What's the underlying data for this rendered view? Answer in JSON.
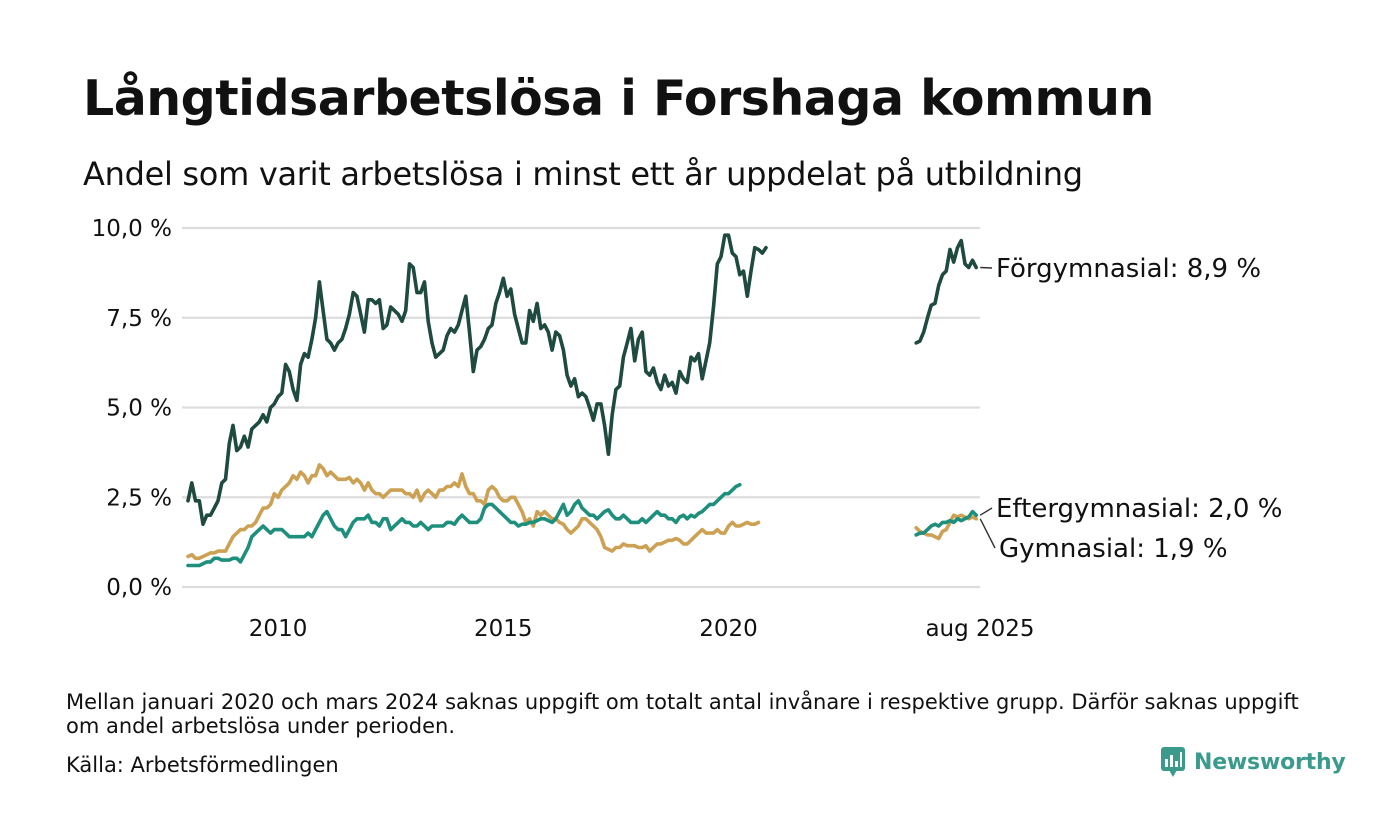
{
  "title": "Långtidsarbetslösa i Forshaga kommun",
  "subtitle": "Andel som varit arbetslösa i minst ett år uppdelat på utbildning",
  "footnote": "Mellan januari 2020 och mars 2024 saknas uppgift om totalt antal invånare i respektive grupp. Därför saknas uppgift om andel arbetslösa under perioden.",
  "source": "Källa: Arbetsförmedlingen",
  "brand": {
    "name": "Newsworthy",
    "icon": "newsworthy-logo-icon",
    "color": "#3a9a8c"
  },
  "chart_data": {
    "type": "line",
    "x_axis": {
      "type": "time",
      "ticks": [
        {
          "date": "2010-01",
          "label": "2010"
        },
        {
          "date": "2015-01",
          "label": "2015"
        },
        {
          "date": "2020-01",
          "label": "2020"
        },
        {
          "date": "2025-08",
          "label": "aug 2025"
        }
      ]
    },
    "y_axis": {
      "range": [
        0,
        10
      ],
      "ticks": [
        {
          "value": 0,
          "label": "0,0 %"
        },
        {
          "value": 2.5,
          "label": "2,5 %"
        },
        {
          "value": 5,
          "label": "5,0 %"
        },
        {
          "value": 7.5,
          "label": "7,5 %"
        },
        {
          "value": 10,
          "label": "10,0 %"
        }
      ],
      "grid": true
    },
    "end_labels": [
      {
        "series": "Förgymnasial",
        "text": "Förgymnasial: 8,9 %"
      },
      {
        "series": "Eftergymnasial",
        "text": "Eftergymnasial: 2,0 %"
      },
      {
        "series": "Gymnasial",
        "text": "Gymnasial: 1,9 %"
      }
    ],
    "series": [
      {
        "name": "Förgymnasial",
        "color": "#1f4a40",
        "segments": [
          {
            "start": "2008-01",
            "values": [
              2.4,
              2.9,
              2.4,
              2.4,
              1.75,
              2.0,
              2.0,
              2.2,
              2.4,
              2.9,
              3.0,
              4.0,
              4.5,
              3.8,
              3.9,
              4.2,
              3.9,
              4.4,
              4.5,
              4.6,
              4.8,
              4.6,
              5.0,
              5.1,
              5.3,
              5.4,
              6.2,
              6.0,
              5.5,
              5.2,
              6.2,
              6.5,
              6.4,
              6.9,
              7.5,
              8.5,
              7.7,
              6.9,
              6.8,
              6.6,
              6.8,
              6.9,
              7.2,
              7.6,
              8.2,
              8.1,
              7.6,
              7.1,
              8.0,
              8.0,
              7.9,
              8.0,
              7.2,
              7.3,
              7.8,
              7.7,
              7.6,
              7.4,
              7.7,
              9.0,
              8.9,
              8.2,
              8.2,
              8.5,
              7.4,
              6.8,
              6.4,
              6.5,
              6.6,
              7.0,
              7.2,
              7.1,
              7.3,
              7.7,
              8.1,
              7.1,
              6.0,
              6.6,
              6.7,
              6.9,
              7.2,
              7.3,
              7.9,
              8.2,
              8.6,
              8.1,
              8.3,
              7.6,
              7.2,
              6.8,
              6.8,
              7.7,
              7.4,
              7.9,
              7.2,
              7.3,
              7.1,
              6.6,
              7.1,
              7.0,
              6.6,
              5.9,
              5.6,
              5.8,
              5.3,
              5.4,
              5.3,
              5.0,
              4.65,
              5.1,
              5.1,
              4.5,
              3.7,
              4.8,
              5.5,
              5.6,
              6.4,
              6.8,
              7.2,
              6.3,
              6.9,
              7.1,
              6.0,
              5.9,
              6.1,
              5.7,
              5.5,
              5.9,
              5.6,
              5.7,
              5.4,
              6.0,
              5.8,
              5.7,
              6.4,
              6.3,
              6.5,
              5.8,
              6.3,
              6.8,
              7.8,
              9.0,
              9.2,
              9.8,
              9.8,
              9.3,
              9.2,
              8.7,
              8.8,
              8.1,
              8.8,
              9.45,
              9.4,
              9.3,
              9.45
            ]
          },
          {
            "start": "2024-03",
            "values": [
              6.8,
              6.85,
              7.1,
              7.5,
              7.85,
              7.9,
              8.4,
              8.7,
              8.8,
              9.4,
              9.05,
              9.45,
              9.65,
              9.0,
              8.9,
              9.1,
              8.9
            ]
          }
        ]
      },
      {
        "name": "Gymnasial",
        "color": "#cca154",
        "segments": [
          {
            "start": "2008-01",
            "values": [
              0.85,
              0.9,
              0.8,
              0.8,
              0.85,
              0.9,
              0.95,
              0.95,
              1.0,
              1.0,
              1.0,
              1.2,
              1.4,
              1.5,
              1.6,
              1.6,
              1.7,
              1.7,
              1.8,
              2.0,
              2.2,
              2.2,
              2.3,
              2.6,
              2.5,
              2.7,
              2.8,
              2.9,
              3.1,
              3.0,
              3.2,
              3.1,
              2.9,
              3.1,
              3.1,
              3.4,
              3.3,
              3.1,
              3.2,
              3.1,
              3.0,
              3.0,
              3.0,
              3.05,
              2.9,
              3.0,
              2.9,
              2.7,
              2.9,
              2.7,
              2.6,
              2.6,
              2.5,
              2.6,
              2.7,
              2.7,
              2.7,
              2.7,
              2.6,
              2.6,
              2.5,
              2.7,
              2.4,
              2.6,
              2.7,
              2.6,
              2.5,
              2.7,
              2.7,
              2.8,
              2.8,
              2.9,
              2.8,
              3.15,
              2.8,
              2.6,
              2.6,
              2.4,
              2.4,
              2.3,
              2.7,
              2.8,
              2.7,
              2.5,
              2.4,
              2.4,
              2.5,
              2.5,
              2.3,
              2.1,
              1.8,
              1.9,
              1.7,
              2.1,
              2.0,
              2.1,
              2.0,
              1.9,
              1.9,
              1.8,
              1.75,
              1.6,
              1.5,
              1.6,
              1.7,
              1.9,
              1.9,
              1.8,
              1.7,
              1.6,
              1.4,
              1.1,
              1.05,
              1.0,
              1.1,
              1.1,
              1.2,
              1.15,
              1.15,
              1.15,
              1.1,
              1.1,
              1.15,
              1.0,
              1.1,
              1.2,
              1.2,
              1.25,
              1.3,
              1.3,
              1.35,
              1.3,
              1.2,
              1.2,
              1.3,
              1.4,
              1.5,
              1.6,
              1.5,
              1.5,
              1.5,
              1.6,
              1.5,
              1.5,
              1.7,
              1.8,
              1.7,
              1.7,
              1.75,
              1.8,
              1.75,
              1.75,
              1.8
            ]
          },
          {
            "start": "2024-03",
            "values": [
              1.65,
              1.55,
              1.5,
              1.45,
              1.45,
              1.4,
              1.35,
              1.55,
              1.6,
              1.8,
              2.0,
              1.95,
              2.0,
              1.95,
              1.9,
              1.95,
              1.9
            ]
          }
        ]
      },
      {
        "name": "Eftergymnasial",
        "color": "#1e8f7c",
        "segments": [
          {
            "start": "2008-01",
            "values": [
              0.6,
              0.6,
              0.6,
              0.6,
              0.65,
              0.7,
              0.7,
              0.8,
              0.8,
              0.75,
              0.75,
              0.75,
              0.8,
              0.8,
              0.7,
              0.9,
              1.1,
              1.4,
              1.5,
              1.6,
              1.7,
              1.6,
              1.5,
              1.6,
              1.6,
              1.6,
              1.5,
              1.4,
              1.4,
              1.4,
              1.4,
              1.4,
              1.5,
              1.4,
              1.6,
              1.8,
              2.0,
              2.1,
              1.9,
              1.7,
              1.6,
              1.6,
              1.4,
              1.6,
              1.8,
              1.9,
              1.9,
              1.9,
              2.0,
              1.8,
              1.8,
              1.7,
              1.9,
              1.9,
              1.6,
              1.7,
              1.8,
              1.9,
              1.8,
              1.8,
              1.7,
              1.7,
              1.8,
              1.7,
              1.6,
              1.7,
              1.7,
              1.7,
              1.7,
              1.8,
              1.8,
              1.75,
              1.9,
              2.0,
              1.9,
              1.8,
              1.8,
              1.8,
              1.9,
              2.2,
              2.3,
              2.3,
              2.2,
              2.1,
              2.0,
              1.9,
              1.8,
              1.8,
              1.7,
              1.75,
              1.75,
              1.8,
              1.8,
              1.85,
              1.9,
              1.9,
              1.85,
              1.8,
              1.9,
              2.1,
              2.3,
              2.0,
              2.1,
              2.3,
              2.4,
              2.2,
              2.1,
              2.0,
              2.0,
              1.9,
              2.0,
              2.1,
              2.15,
              2.0,
              1.9,
              1.9,
              2.0,
              1.9,
              1.8,
              1.8,
              1.8,
              1.9,
              1.8,
              1.9,
              2.0,
              2.1,
              2.0,
              2.0,
              1.9,
              1.9,
              1.8,
              1.95,
              2.0,
              1.9,
              2.0,
              1.95,
              2.05,
              2.1,
              2.2,
              2.3,
              2.3,
              2.4,
              2.5,
              2.6,
              2.6,
              2.7,
              2.8,
              2.85
            ]
          },
          {
            "start": "2024-03",
            "values": [
              1.45,
              1.5,
              1.5,
              1.6,
              1.7,
              1.75,
              1.7,
              1.8,
              1.8,
              1.85,
              1.8,
              1.9,
              1.85,
              1.9,
              1.95,
              2.1,
              2.0
            ]
          }
        ]
      }
    ]
  }
}
